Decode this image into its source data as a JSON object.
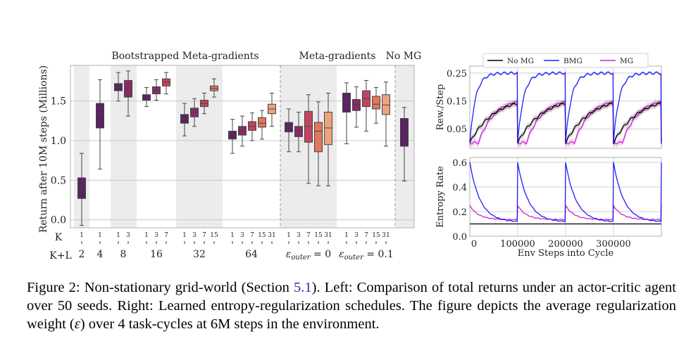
{
  "chart_data": [
    {
      "type": "box",
      "title": "",
      "group_titles": [
        "Bootstrapped Meta-gradients",
        "Meta-gradients",
        "No MG"
      ],
      "ylabel": "Return after 10M steps (Millions)",
      "ylim": [
        -0.1,
        1.95
      ],
      "yticks": [
        0.0,
        0.5,
        1.0,
        1.5
      ],
      "ytick_labels": [
        "0.0",
        "0.5",
        "1.0",
        "1.5"
      ],
      "row_labels": {
        "k": "K",
        "kl": "K+L"
      },
      "groups": [
        {
          "label": "2",
          "shaded": true,
          "boxes": [
            {
              "k": "1",
              "whislo": -0.07,
              "q1": 0.27,
              "med": 0.39,
              "q3": 0.53,
              "whishi": 0.84,
              "color": "#5a2362"
            }
          ]
        },
        {
          "label": "4",
          "shaded": false,
          "boxes": [
            {
              "k": "1",
              "whislo": 0.64,
              "q1": 1.16,
              "med": 1.35,
              "q3": 1.47,
              "whishi": 1.77,
              "color": "#5a2362"
            }
          ]
        },
        {
          "label": "8",
          "shaded": true,
          "boxes": [
            {
              "k": "1",
              "whislo": 1.5,
              "q1": 1.63,
              "med": 1.67,
              "q3": 1.72,
              "whishi": 1.86,
              "color": "#5a2362"
            },
            {
              "k": "3",
              "whislo": 1.31,
              "q1": 1.55,
              "med": 1.66,
              "q3": 1.76,
              "whishi": 1.88,
              "color": "#852d63"
            }
          ]
        },
        {
          "label": "16",
          "shaded": false,
          "boxes": [
            {
              "k": "1",
              "whislo": 1.43,
              "q1": 1.51,
              "med": 1.54,
              "q3": 1.58,
              "whishi": 1.67,
              "color": "#5a2362"
            },
            {
              "k": "3",
              "whislo": 1.51,
              "q1": 1.59,
              "med": 1.63,
              "q3": 1.68,
              "whishi": 1.77,
              "color": "#852d63"
            },
            {
              "k": "7",
              "whislo": 1.59,
              "q1": 1.69,
              "med": 1.74,
              "q3": 1.78,
              "whishi": 1.86,
              "color": "#c2455f"
            }
          ]
        },
        {
          "label": "32",
          "shaded": true,
          "boxes": [
            {
              "k": "1",
              "whislo": 1.06,
              "q1": 1.22,
              "med": 1.27,
              "q3": 1.33,
              "whishi": 1.47,
              "color": "#5a2362"
            },
            {
              "k": "3",
              "whislo": 1.18,
              "q1": 1.3,
              "med": 1.36,
              "q3": 1.41,
              "whishi": 1.53,
              "color": "#852d63"
            },
            {
              "k": "7",
              "whislo": 1.34,
              "q1": 1.43,
              "med": 1.47,
              "q3": 1.51,
              "whishi": 1.6,
              "color": "#c2455f"
            },
            {
              "k": "15",
              "whislo": 1.55,
              "q1": 1.63,
              "med": 1.66,
              "q3": 1.69,
              "whishi": 1.78,
              "color": "#e1765c"
            }
          ]
        },
        {
          "label": "64",
          "shaded": false,
          "boxes": [
            {
              "k": "1",
              "whislo": 0.84,
              "q1": 1.02,
              "med": 1.07,
              "q3": 1.12,
              "whishi": 1.27,
              "color": "#5a2362"
            },
            {
              "k": "3",
              "whislo": 0.93,
              "q1": 1.07,
              "med": 1.12,
              "q3": 1.18,
              "whishi": 1.31,
              "color": "#852d63"
            },
            {
              "k": "7",
              "whislo": 1.0,
              "q1": 1.13,
              "med": 1.18,
              "q3": 1.24,
              "whishi": 1.35,
              "color": "#c2455f"
            },
            {
              "k": "15",
              "whislo": 1.02,
              "q1": 1.17,
              "med": 1.22,
              "q3": 1.29,
              "whishi": 1.38,
              "color": "#e1765c"
            },
            {
              "k": "31",
              "whislo": 1.18,
              "q1": 1.34,
              "med": 1.4,
              "q3": 1.46,
              "whishi": 1.6,
              "color": "#eba47e"
            }
          ]
        },
        {
          "label": "ε_outer = 0",
          "shaded": true,
          "boxes": [
            {
              "k": "1",
              "whislo": 0.86,
              "q1": 1.11,
              "med": 1.17,
              "q3": 1.23,
              "whishi": 1.4,
              "color": "#5a2362"
            },
            {
              "k": "3",
              "whislo": 0.86,
              "q1": 1.05,
              "med": 1.12,
              "q3": 1.18,
              "whishi": 1.36,
              "color": "#852d63"
            },
            {
              "k": "7",
              "whislo": 0.46,
              "q1": 0.98,
              "med": 1.18,
              "q3": 1.37,
              "whishi": 1.58,
              "color": "#c2455f"
            },
            {
              "k": "15",
              "whislo": 0.43,
              "q1": 0.86,
              "med": 1.12,
              "q3": 1.23,
              "whishi": 1.49,
              "color": "#e1765c"
            },
            {
              "k": "31",
              "whislo": 0.43,
              "q1": 0.95,
              "med": 1.16,
              "q3": 1.36,
              "whishi": 1.6,
              "color": "#eba47e"
            }
          ]
        },
        {
          "label": "ε_outer = 0.1",
          "shaded": false,
          "boxes": [
            {
              "k": "1",
              "whislo": 0.96,
              "q1": 1.36,
              "med": 1.5,
              "q3": 1.6,
              "whishi": 1.73,
              "color": "#5a2362"
            },
            {
              "k": "3",
              "whislo": 1.17,
              "q1": 1.38,
              "med": 1.45,
              "q3": 1.52,
              "whishi": 1.68,
              "color": "#852d63"
            },
            {
              "k": "7",
              "whislo": 1.12,
              "q1": 1.43,
              "med": 1.53,
              "q3": 1.63,
              "whishi": 1.76,
              "color": "#c2455f"
            },
            {
              "k": "15",
              "whislo": 1.22,
              "q1": 1.4,
              "med": 1.46,
              "q3": 1.56,
              "whishi": 1.67,
              "color": "#e1765c"
            },
            {
              "k": "31",
              "whislo": 0.93,
              "q1": 1.33,
              "med": 1.45,
              "q3": 1.58,
              "whishi": 1.74,
              "color": "#eba47e"
            }
          ]
        },
        {
          "label": "",
          "shaded": true,
          "boxes": [
            {
              "k": "",
              "whislo": 0.49,
              "q1": 0.93,
              "med": 1.08,
              "q3": 1.28,
              "whishi": 1.42,
              "color": "#5a2362"
            }
          ]
        }
      ]
    },
    {
      "type": "line",
      "title": "",
      "ylabel": "Rew./Step",
      "xlim": [
        0,
        400000
      ],
      "ylim": [
        -0.02,
        0.275
      ],
      "yticks": [
        0.05,
        0.15,
        0.25
      ],
      "ytick_labels": [
        "0.05",
        "0.15",
        "0.25"
      ],
      "legend": [
        "No MG",
        "BMG",
        "MG"
      ],
      "legend_position": "top",
      "series": [
        {
          "name": "No MG",
          "color": "#000000",
          "model": {
            "kind": "rise",
            "start": 0.0,
            "end": 0.165,
            "tau": 50000,
            "band": 0.01
          }
        },
        {
          "name": "BMG",
          "color": "#1f1fff",
          "model": {
            "kind": "rise",
            "start": 0.0,
            "end": 0.25,
            "tau": 12000,
            "band": 0.004
          }
        },
        {
          "name": "MG",
          "color": "#cc22cc",
          "model": {
            "kind": "rise_delay",
            "start": 0.0,
            "end": 0.16,
            "tau": 33000,
            "delay": 18000,
            "band": 0.012
          }
        }
      ],
      "cycle_length": 100000
    },
    {
      "type": "line",
      "title": "",
      "ylabel": "Entropy Rate",
      "xlabel": "Env Steps into Cycle",
      "xlim": [
        0,
        400000
      ],
      "ylim": [
        0.0,
        0.64
      ],
      "yticks": [
        0.0,
        0.2,
        0.4,
        0.6
      ],
      "ytick_labels": [
        "0.0",
        "0.2",
        "0.4",
        "0.6"
      ],
      "xticks": [
        0,
        100000,
        200000,
        300000
      ],
      "xtick_labels": [
        "0",
        "100000",
        "200000",
        "300000"
      ],
      "series": [
        {
          "name": "No MG",
          "color": "#000000",
          "model": {
            "kind": "flat",
            "value": 0.1
          }
        },
        {
          "name": "BMG",
          "color": "#1f1fff",
          "model": {
            "kind": "decay",
            "start": 0.6,
            "end": 0.115,
            "tau": 22000
          }
        },
        {
          "name": "MG",
          "color": "#cc22cc",
          "model": {
            "kind": "decay",
            "start": 0.25,
            "end": 0.135,
            "tau": 18000
          }
        }
      ],
      "cycle_length": 100000
    }
  ],
  "caption": {
    "figure_label": "Figure 2:",
    "part1": " Non-stationary grid-world (Section ",
    "section_ref": "5.1",
    "part2": ").  Left: Comparison of total returns under an actor-critic agent over 50 seeds. Right: Learned entropy-regularization schedules. The figure depicts the average regularization weight (",
    "epsilon": "ε",
    "part3": ") over 4 task-cycles at 6M steps in the environment."
  }
}
